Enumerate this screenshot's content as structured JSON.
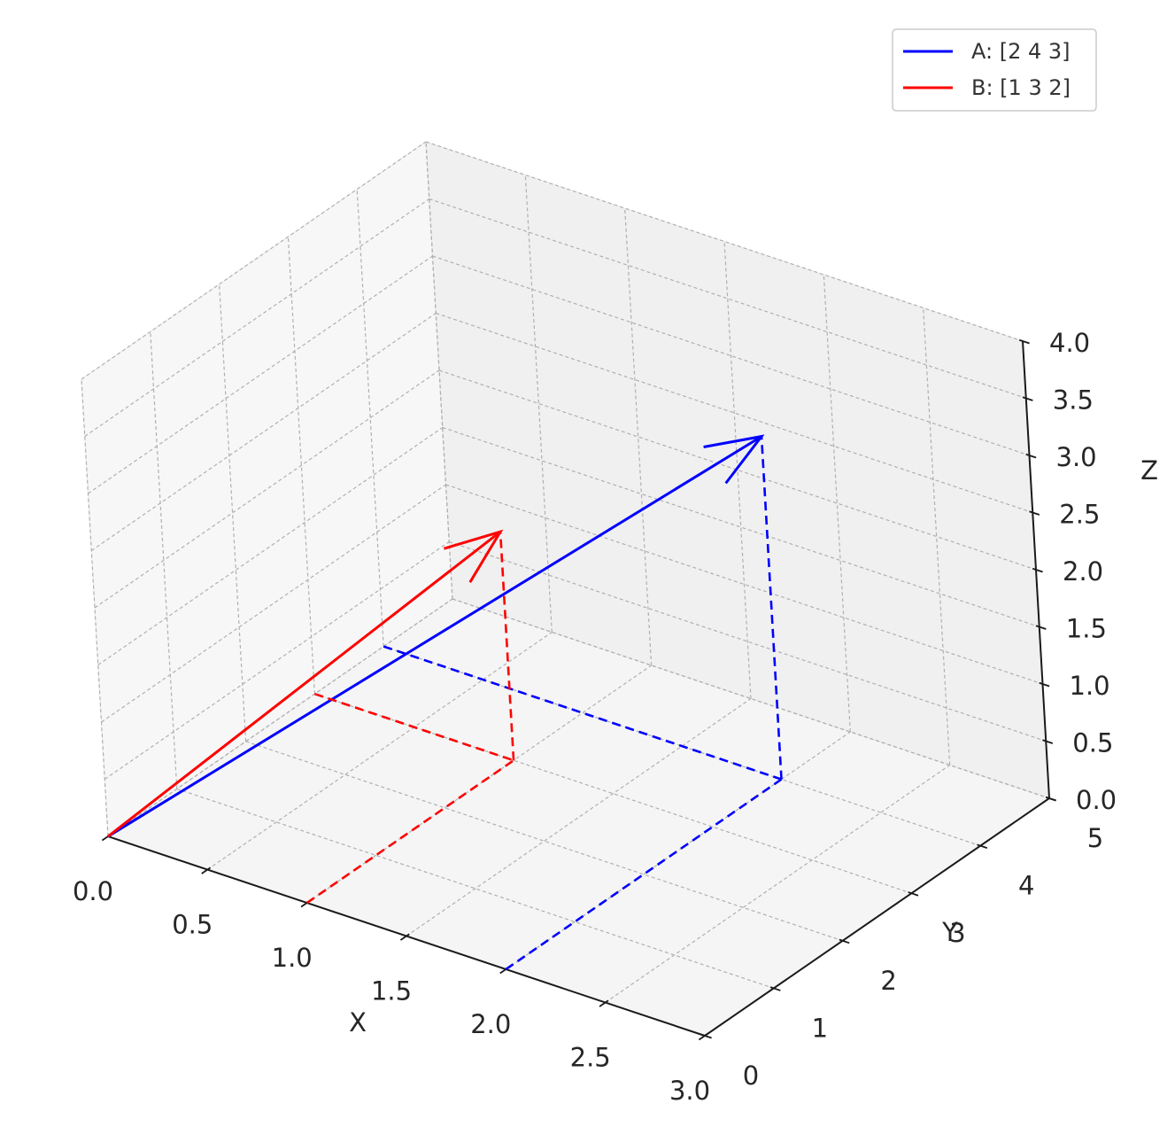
{
  "chart_data": {
    "type": "vector3d",
    "xlabel": "X",
    "ylabel": "Y",
    "zlabel": "Z",
    "xlim": [
      0,
      3
    ],
    "ylim": [
      0,
      5
    ],
    "zlim": [
      0,
      4
    ],
    "x_ticks": [
      "0.0",
      "0.5",
      "1.0",
      "1.5",
      "2.0",
      "2.5",
      "3.0"
    ],
    "y_ticks": [
      "0",
      "1",
      "2",
      "3",
      "4",
      "5"
    ],
    "z_ticks": [
      "0.0",
      "0.5",
      "1.0",
      "1.5",
      "2.0",
      "2.5",
      "3.0",
      "3.5",
      "4.0"
    ],
    "grid": true,
    "grid_style": "dashed",
    "legend_position": "top-right",
    "series": [
      {
        "name": "A: [2 4 3]",
        "vector": [
          2,
          4,
          3
        ],
        "color": "#0000ff",
        "projections": "dashed"
      },
      {
        "name": "B: [1 3 2]",
        "vector": [
          1,
          3,
          2
        ],
        "color": "#ff0000",
        "projections": "dashed"
      }
    ]
  }
}
